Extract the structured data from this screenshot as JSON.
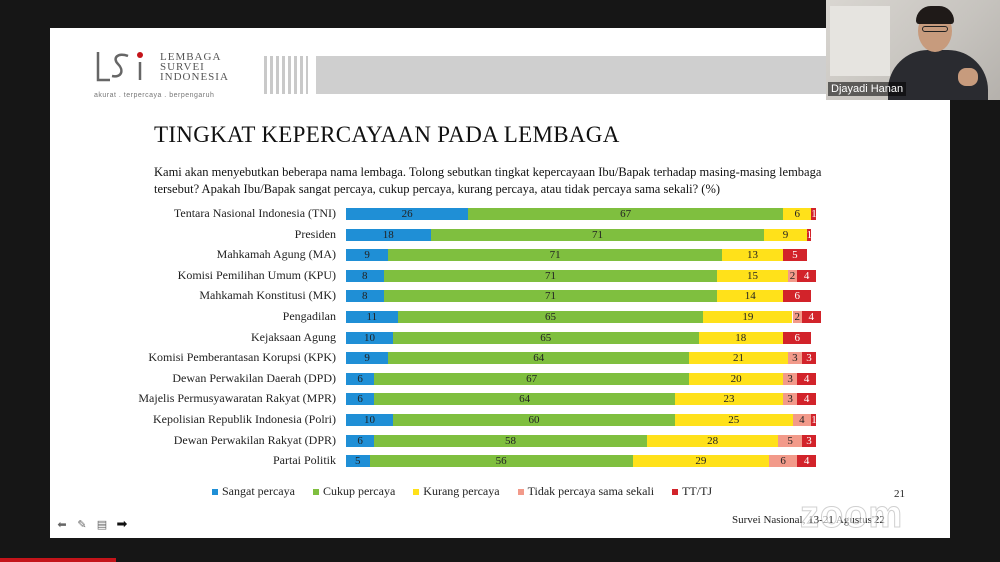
{
  "slide": {
    "logo_text_lines": [
      "LEMBAGA",
      "SURVEI",
      "INDONESIA"
    ],
    "logo_tagline": "akurat . terpercaya . berpengaruh",
    "title": "TINGKAT KEPERCAYAAN PADA LEMBAGA",
    "question": "Kami akan menyebutkan beberapa nama lembaga. Tolong sebutkan tingkat kepercayaan Ibu/Bapak terhadap masing-masing lembaga tersebut? Apakah Ibu/Bapak sangat percaya, cukup percaya, kurang percaya, atau tidak percaya sama sekali? (%)",
    "page_number": "21",
    "footer_note": "Survei Nasional, 13-21 Agustus'22"
  },
  "chart_data": {
    "type": "bar",
    "orientation": "horizontal",
    "stacked": true,
    "title": "",
    "xlabel": "",
    "ylabel": "",
    "xlim": [
      0,
      100
    ],
    "legend_position": "bottom",
    "grid": false,
    "categories": [
      "Tentara Nasional Indonesia (TNI)",
      "Presiden",
      "Mahkamah Agung (MA)",
      "Komisi Pemilihan Umum (KPU)",
      "Mahkamah Konstitusi (MK)",
      "Pengadilan",
      "Kejaksaan Agung",
      "Komisi Pemberantasan Korupsi (KPK)",
      "Dewan Perwakilan Daerah (DPD)",
      "Majelis Permusyawaratan Rakyat (MPR)",
      "Kepolisian Republik Indonesia (Polri)",
      "Dewan Perwakilan Rakyat (DPR)",
      "Partai Politik"
    ],
    "series": [
      {
        "name": "Sangat percaya",
        "color": "#1f8fd6",
        "values": [
          26,
          18,
          9,
          8,
          8,
          11,
          10,
          9,
          6,
          6,
          10,
          6,
          5
        ]
      },
      {
        "name": "Cukup percaya",
        "color": "#7fbf3f",
        "values": [
          67,
          71,
          71,
          71,
          71,
          65,
          65,
          64,
          67,
          64,
          60,
          58,
          56
        ]
      },
      {
        "name": "Kurang percaya",
        "color": "#ffe11a",
        "values": [
          6,
          9,
          13,
          15,
          14,
          19,
          18,
          21,
          20,
          23,
          25,
          28,
          29
        ]
      },
      {
        "name": "Tidak percaya sama sekali",
        "color": "#f29a8a",
        "values": [
          0,
          0,
          0,
          2,
          0,
          2,
          0,
          3,
          3,
          3,
          4,
          5,
          6
        ]
      },
      {
        "name": "TT/TJ",
        "color": "#d2232a",
        "values": [
          1,
          1,
          5,
          4,
          6,
          4,
          6,
          3,
          4,
          4,
          1,
          3,
          4
        ]
      }
    ],
    "labels": [
      [
        "26",
        "67",
        "6",
        "",
        "1"
      ],
      [
        "18",
        "71",
        "9",
        "",
        "1"
      ],
      [
        "9",
        "71",
        "13",
        "",
        "5"
      ],
      [
        "8",
        "71",
        "15",
        "2",
        "4"
      ],
      [
        "8",
        "71",
        "14",
        "",
        "6"
      ],
      [
        "11",
        "65",
        "19",
        "2",
        "4"
      ],
      [
        "10",
        "65",
        "18",
        "",
        "6"
      ],
      [
        "9",
        "64",
        "21",
        "3",
        "3"
      ],
      [
        "6",
        "67",
        "20",
        "3",
        "4"
      ],
      [
        "6",
        "64",
        "23",
        "3",
        "4"
      ],
      [
        "10",
        "60",
        "25",
        "4",
        "1"
      ],
      [
        "6",
        "58",
        "28",
        "5",
        "3"
      ],
      [
        "5",
        "56",
        "29",
        "6",
        "4"
      ]
    ]
  },
  "toolbar": {
    "icons": [
      "arrow-left-icon",
      "pen-icon",
      "slides-icon",
      "pointer-icon"
    ]
  },
  "zoom_watermark": "zoom",
  "participant": {
    "name": "Djayadi Hanan"
  },
  "colors": {
    "accent_red": "#c4141a"
  }
}
